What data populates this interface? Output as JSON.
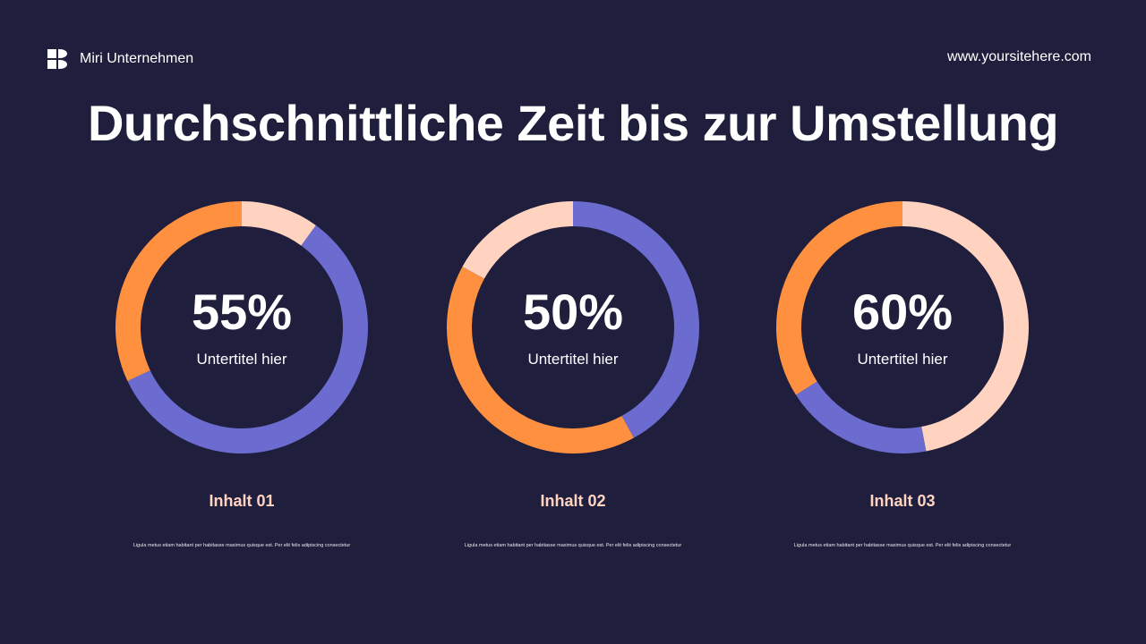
{
  "brand": {
    "name": "Miri Unternehmen",
    "icon": "logo-icon"
  },
  "website": "www.yoursitehere.com",
  "title": "Durchschnittliche Zeit bis zur Umstellung",
  "colors": {
    "background": "#1f1f3d",
    "orange": "#ff9040",
    "blue": "#6b6bd0",
    "peach": "#ffd3c0"
  },
  "chart_data": [
    {
      "type": "pie",
      "label": "55%",
      "subtitle": "Untertitel hier",
      "heading": "Inhalt 01",
      "description": "Ligula metus etiam habitant per habitasse maximus quisque est. Per elit felis adipiscing consectetur",
      "segments": [
        {
          "color": "#ffd3c0",
          "value": 10
        },
        {
          "color": "#6b6bd0",
          "value": 58
        },
        {
          "color": "#ff9040",
          "value": 32
        }
      ]
    },
    {
      "type": "pie",
      "label": "50%",
      "subtitle": "Untertitel hier",
      "heading": "Inhalt 02",
      "description": "Ligula metus etiam habitant per habitasse maximus quisque est. Per elit felis adipiscing consectetur",
      "segments": [
        {
          "color": "#6b6bd0",
          "value": 42
        },
        {
          "color": "#ff9040",
          "value": 41
        },
        {
          "color": "#ffd3c0",
          "value": 17
        }
      ]
    },
    {
      "type": "pie",
      "label": "60%",
      "subtitle": "Untertitel hier",
      "heading": "Inhalt 03",
      "description": "Ligula metus etiam habitant per habitasse maximus quisque est. Per elit felis adipiscing consectetur",
      "segments": [
        {
          "color": "#ffd3c0",
          "value": 47
        },
        {
          "color": "#6b6bd0",
          "value": 19
        },
        {
          "color": "#ff9040",
          "value": 34
        }
      ]
    }
  ]
}
